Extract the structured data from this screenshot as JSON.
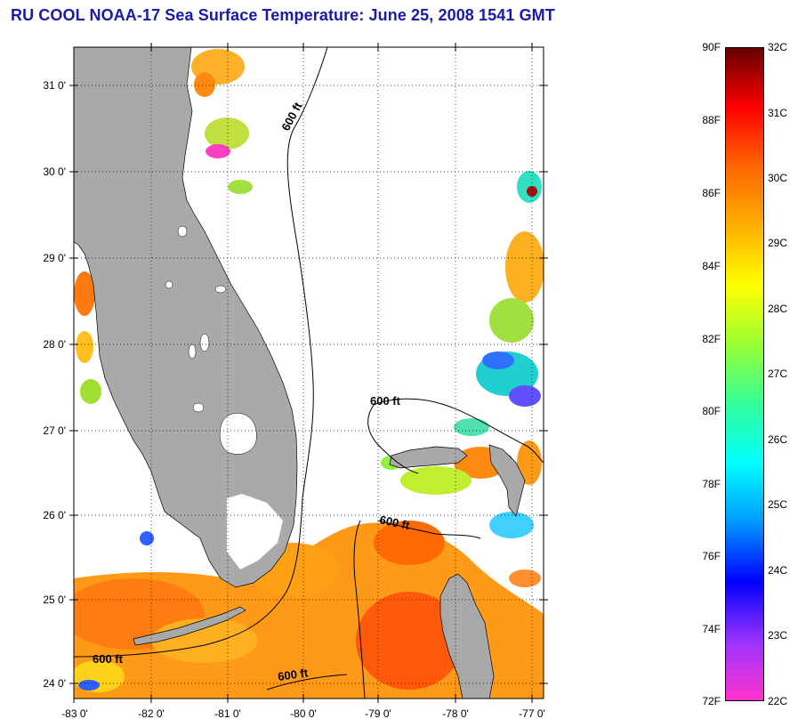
{
  "title": "RU COOL  NOAA-17  Sea Surface Temperature:  June 25, 2008 1541 GMT",
  "map": {
    "lat_labels": [
      "31 0'",
      "30 0'",
      "29 0'",
      "28 0'",
      "27 0'",
      "26 0'",
      "25 0'",
      "24 0'"
    ],
    "lon_labels": [
      "-83 0'",
      "-82 0'",
      "-81 0'",
      "-80 0'",
      "-79 0'",
      "-78 0'",
      "-77 0'"
    ],
    "isobath_labels": [
      "600 ft",
      "600 ft",
      "600 ft",
      "600 ft",
      "600 ft"
    ],
    "colors": {
      "land": "#a9a9a9",
      "ocean_no_data": "#ffffff",
      "title": "#1a1aa8"
    }
  },
  "colorbar": {
    "fahrenheit_labels": [
      "90F",
      "88F",
      "86F",
      "84F",
      "82F",
      "80F",
      "78F",
      "76F",
      "74F",
      "72F"
    ],
    "celsius_labels": [
      "32C",
      "31C",
      "30C",
      "29C",
      "28C",
      "27C",
      "26C",
      "25C",
      "24C",
      "23C",
      "22C"
    ],
    "gradient_stops": [
      "#ff33cc",
      "#9933ff",
      "#0000ff",
      "#0099ff",
      "#00ffff",
      "#33ff99",
      "#99ff33",
      "#ffff00",
      "#ffb000",
      "#ff6600",
      "#ff0000",
      "#660000"
    ]
  }
}
